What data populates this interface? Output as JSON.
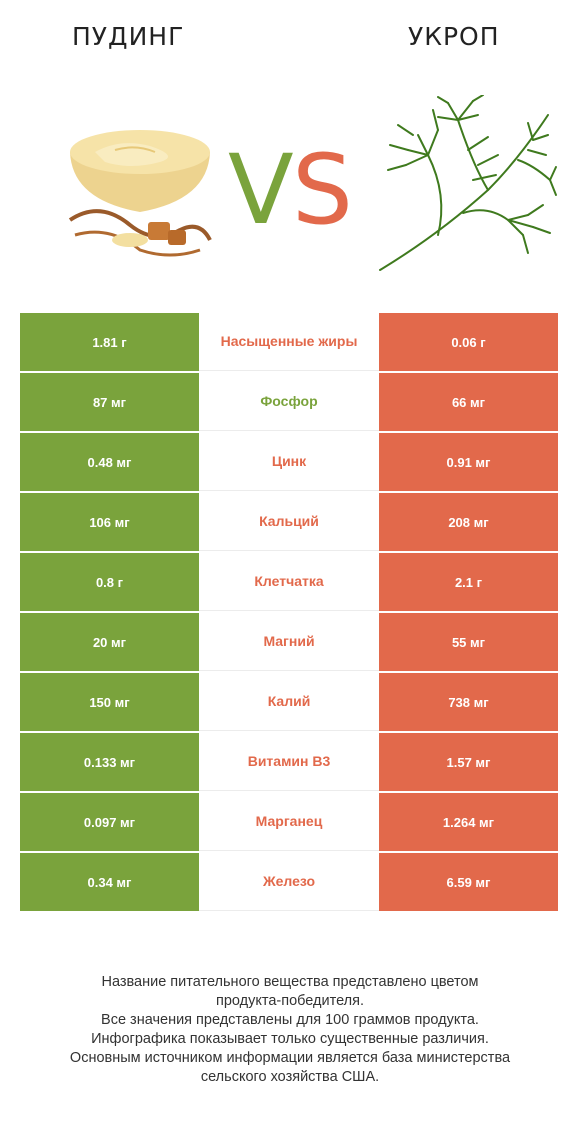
{
  "header": {
    "left_title": "ПУДИНГ",
    "right_title": "УКРОП",
    "vs_left_letter": "V",
    "vs_right_letter": "S"
  },
  "colors": {
    "winner_left": "#7aa33c",
    "winner_right": "#e2694b"
  },
  "rows": [
    {
      "nutrient": "Насыщенные жиры",
      "left": "1.81 г",
      "right": "0.06 г",
      "winner": "right"
    },
    {
      "nutrient": "Фосфор",
      "left": "87 мг",
      "right": "66 мг",
      "winner": "left"
    },
    {
      "nutrient": "Цинк",
      "left": "0.48 мг",
      "right": "0.91 мг",
      "winner": "right"
    },
    {
      "nutrient": "Кальций",
      "left": "106 мг",
      "right": "208 мг",
      "winner": "right"
    },
    {
      "nutrient": "Клетчатка",
      "left": "0.8 г",
      "right": "2.1 г",
      "winner": "right"
    },
    {
      "nutrient": "Магний",
      "left": "20 мг",
      "right": "55 мг",
      "winner": "right"
    },
    {
      "nutrient": "Калий",
      "left": "150 мг",
      "right": "738 мг",
      "winner": "right"
    },
    {
      "nutrient": "Витамин B3",
      "left": "0.133 мг",
      "right": "1.57 мг",
      "winner": "right"
    },
    {
      "nutrient": "Марганец",
      "left": "0.097 мг",
      "right": "1.264 мг",
      "winner": "right"
    },
    {
      "nutrient": "Железо",
      "left": "0.34 мг",
      "right": "6.59 мг",
      "winner": "right"
    }
  ],
  "footer": {
    "line1": "Название питательного вещества представлено цветом",
    "line2": "продукта-победителя.",
    "line3": "Все значения представлены для 100 граммов продукта.",
    "line4": "Инфографика показывает только существенные различия.",
    "line5": "Основным источником информации является база министерства",
    "line6": "сельского хозяйства США."
  }
}
